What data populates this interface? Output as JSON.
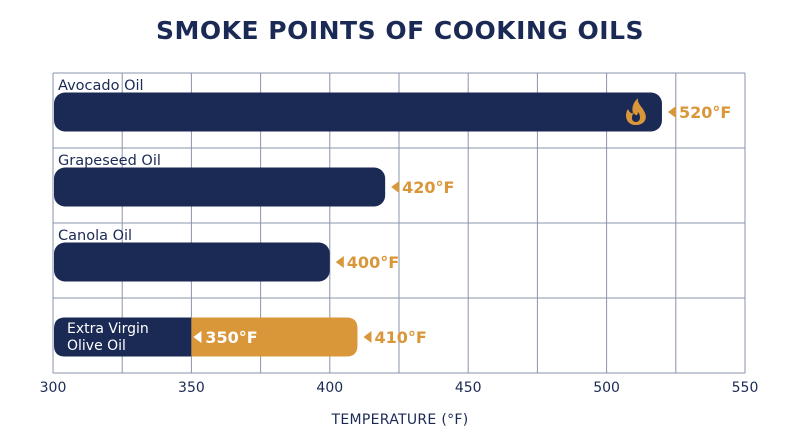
{
  "chart_data": {
    "type": "bar",
    "orientation": "horizontal",
    "title": "SMOKE POINTS OF COOKING OILS",
    "xlabel": "TEMPERATURE (°F)",
    "ylabel": "",
    "xlim": [
      300,
      550
    ],
    "xticks": [
      300,
      350,
      400,
      450,
      500,
      550
    ],
    "grid": true,
    "categories": [
      {
        "label": "Avocado Oil",
        "value": 520,
        "value_label": "520°F",
        "icon": "flame-icon",
        "label_position": "above"
      },
      {
        "label": "Grapeseed Oil",
        "value": 420,
        "value_label": "420°F",
        "label_position": "above"
      },
      {
        "label": "Canola Oil",
        "value": 400,
        "value_label": "400°F",
        "label_position": "above"
      },
      {
        "label": "Extra Virgin Olive Oil",
        "label_lines": [
          "Extra Virgin",
          "Olive Oil"
        ],
        "value": 410,
        "value_label": "410°F",
        "label_position": "inside",
        "inner_value": 350,
        "inner_value_label": "350°F"
      }
    ],
    "colors": {
      "bar": "#1b2a55",
      "accent": "#d9973a",
      "grid": "#8a93ad",
      "text": "#1b2a55"
    }
  }
}
